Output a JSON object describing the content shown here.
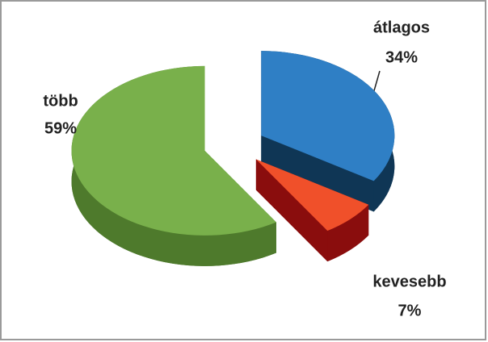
{
  "chart_data": {
    "type": "pie",
    "categories": [
      "átlagos",
      "kevesebb",
      "több"
    ],
    "values": [
      34,
      7,
      59
    ],
    "value_labels": [
      "34%",
      "7%",
      "59%"
    ],
    "colors": [
      "#2f7fc5",
      "#f0502a",
      "#79b04b"
    ],
    "side_colors": [
      "#0f3655",
      "#8a0d0d",
      "#4e7a2c"
    ]
  }
}
